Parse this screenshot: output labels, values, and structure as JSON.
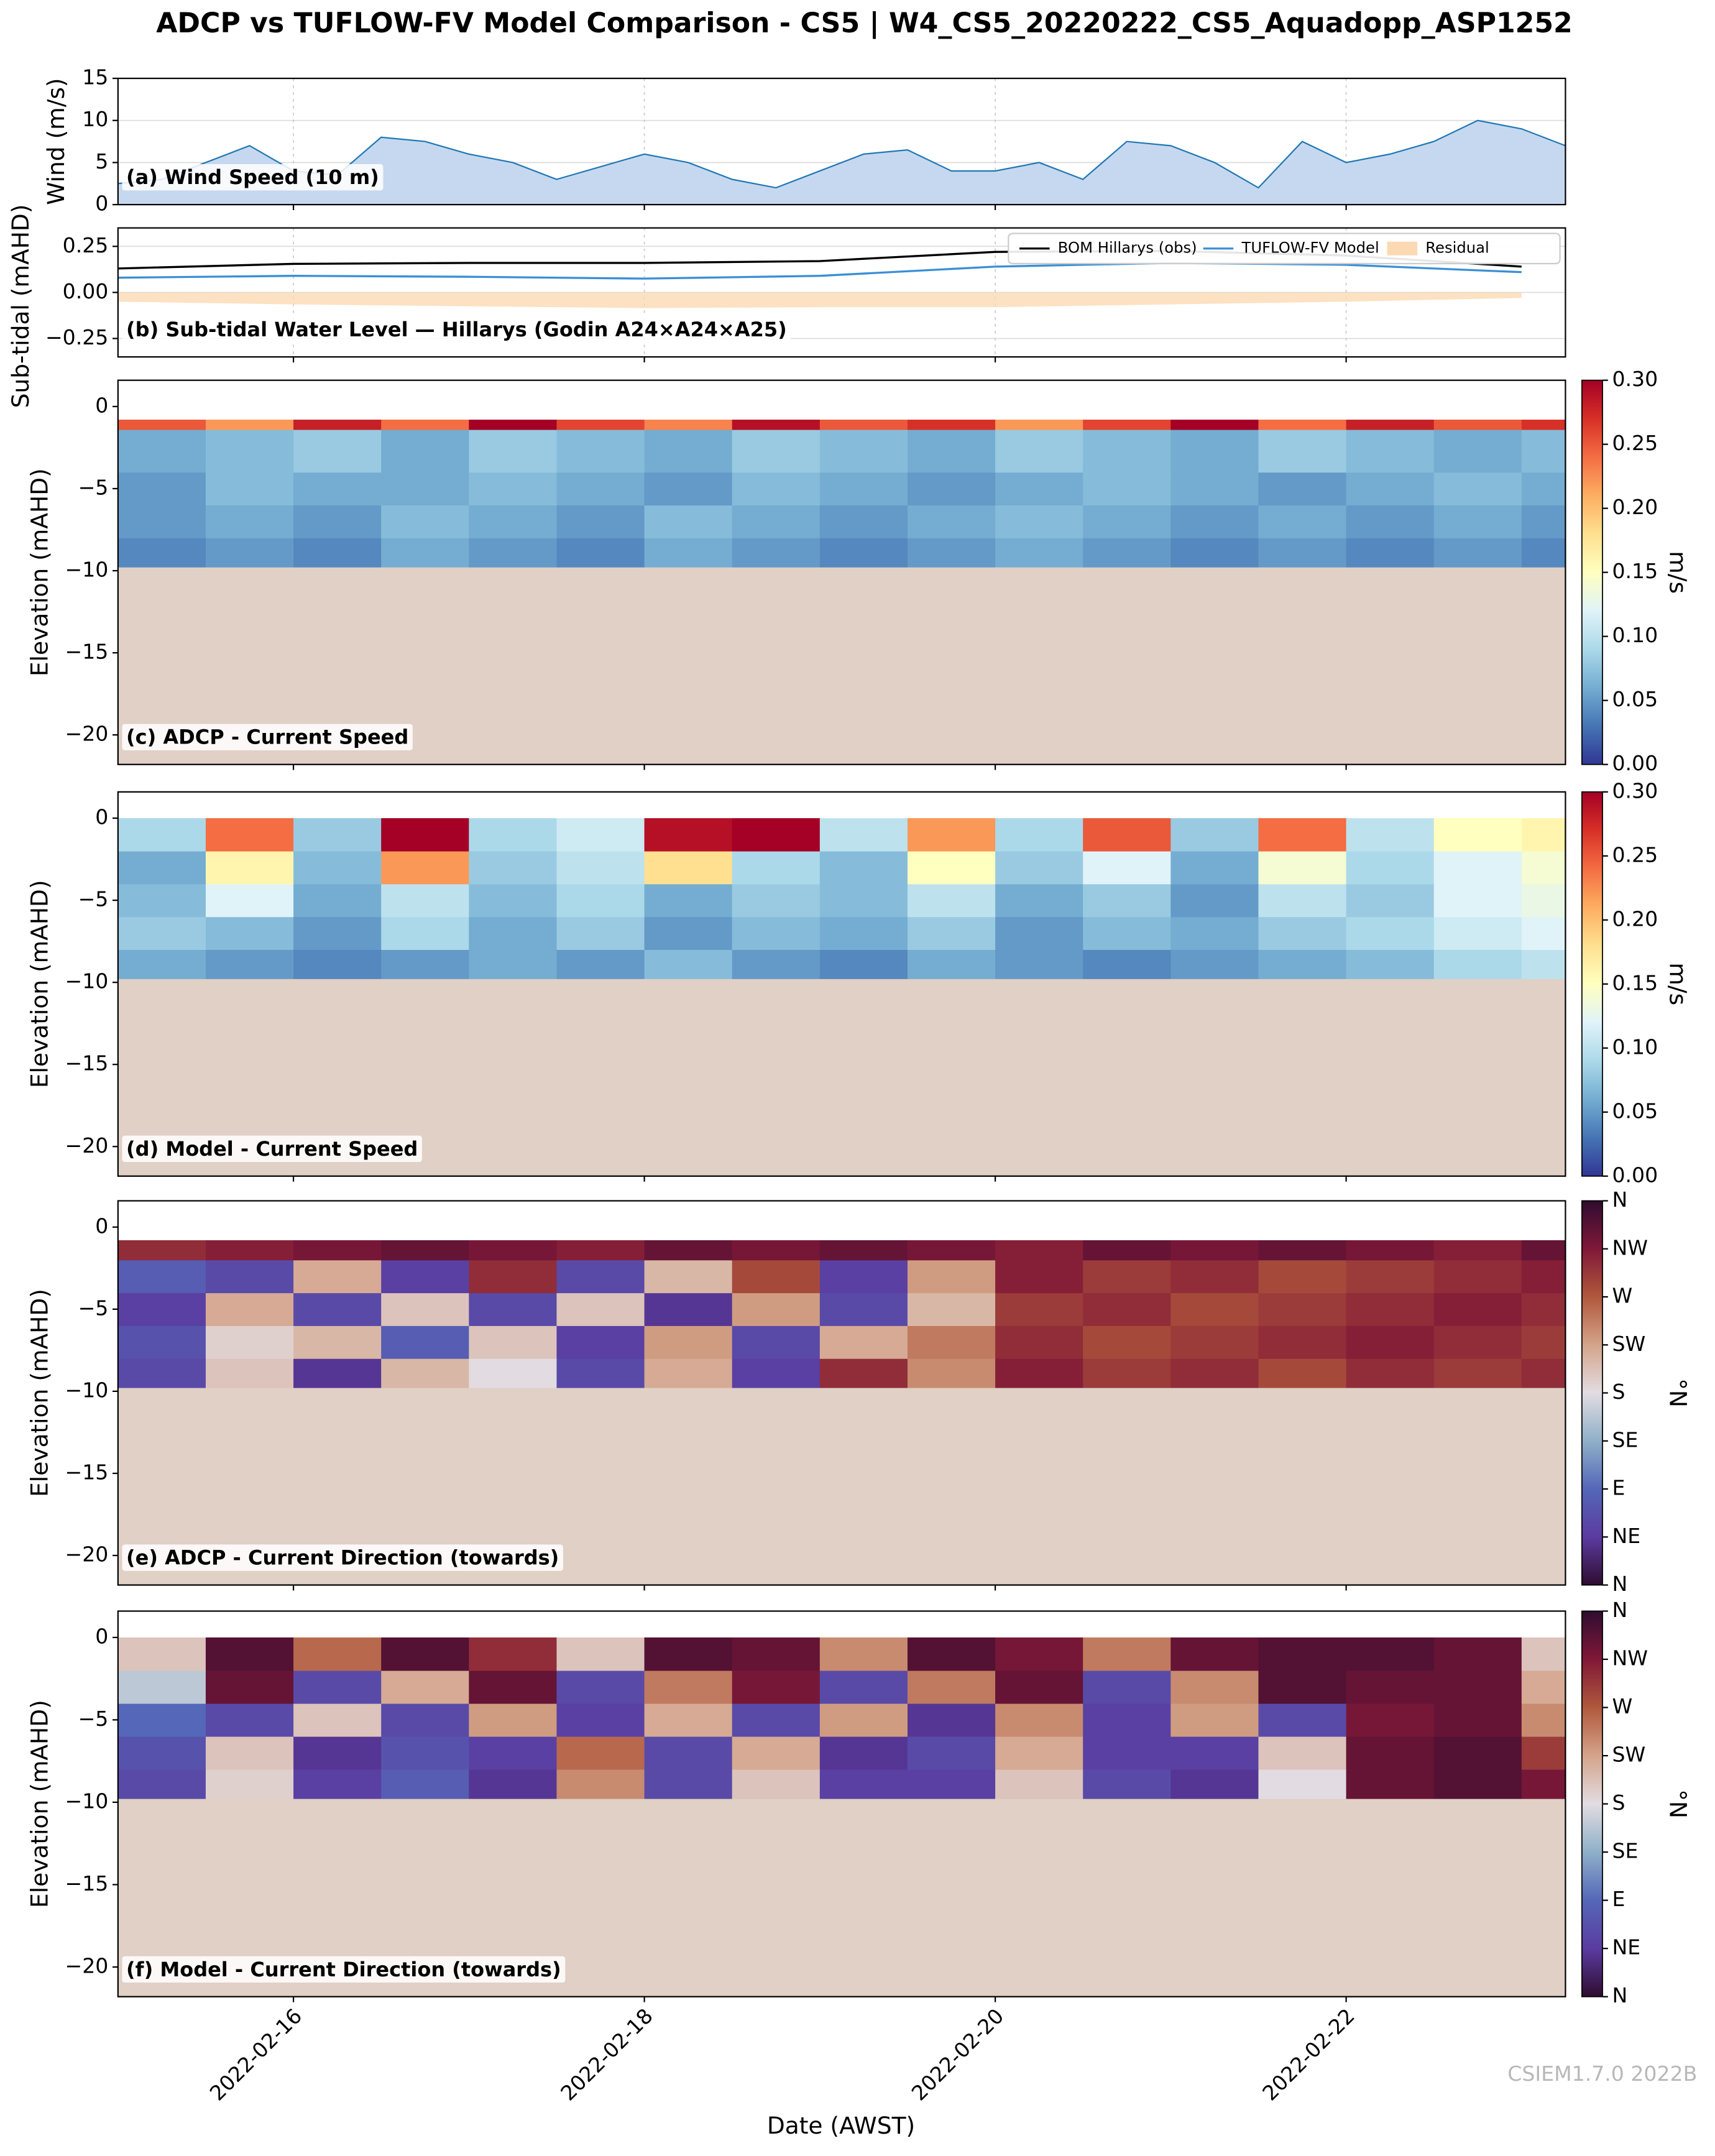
{
  "title": "ADCP vs TUFLOW-FV Model Comparison - CS5 | W4_CS5_20220222_CS5_Aquadopp_ASP1252",
  "x_label": "Date (AWST)",
  "watermark": "CSIEM1.7.0 2022B",
  "chart_data": [
    {
      "type": "area",
      "label": "(a) Wind Speed (10 m)",
      "ylabel": "Wind (m/s)",
      "color": "#1f77b4",
      "fill_color": "#c6d8ef",
      "grid": true,
      "xlim": [
        "2022-02-15T00:00",
        "2022-02-23T06:00"
      ],
      "ylim": [
        0,
        15
      ],
      "yticks": [
        0,
        5,
        10,
        15
      ],
      "x": [
        "2022-02-15T00:00",
        "2022-02-15T06:00",
        "2022-02-15T12:00",
        "2022-02-15T18:00",
        "2022-02-16T00:00",
        "2022-02-16T06:00",
        "2022-02-16T12:00",
        "2022-02-16T18:00",
        "2022-02-17T00:00",
        "2022-02-17T06:00",
        "2022-02-17T12:00",
        "2022-02-17T18:00",
        "2022-02-18T00:00",
        "2022-02-18T06:00",
        "2022-02-18T12:00",
        "2022-02-18T18:00",
        "2022-02-19T00:00",
        "2022-02-19T06:00",
        "2022-02-19T12:00",
        "2022-02-19T18:00",
        "2022-02-20T00:00",
        "2022-02-20T06:00",
        "2022-02-20T12:00",
        "2022-02-20T18:00",
        "2022-02-21T00:00",
        "2022-02-21T06:00",
        "2022-02-21T12:00",
        "2022-02-21T18:00",
        "2022-02-22T00:00",
        "2022-02-22T06:00",
        "2022-02-22T12:00",
        "2022-02-22T18:00",
        "2022-02-23T00:00",
        "2022-02-23T06:00"
      ],
      "values": [
        2.5,
        3,
        5,
        7,
        4,
        3.5,
        8,
        7.5,
        6,
        5,
        3,
        4.5,
        6,
        5,
        3,
        2,
        4,
        6,
        6.5,
        4,
        4,
        5,
        3,
        7.5,
        7,
        5,
        2,
        7.5,
        5,
        6,
        7.5,
        10,
        9,
        7
      ]
    },
    {
      "type": "line",
      "label": "(b) Sub-tidal Water Level — Hillarys (Godin A24×A24×A25)",
      "ylabel": "Sub-tidal (mAHD)",
      "grid": true,
      "legend": "upper right",
      "xlim": [
        "2022-02-15T00:00",
        "2022-02-23T06:00"
      ],
      "ylim": [
        -0.35,
        0.35
      ],
      "yticks": [
        {
          "value": -0.25,
          "label": "−0.25"
        },
        {
          "value": 0,
          "label": "0.00"
        },
        0.25
      ],
      "x": [
        "2022-02-15",
        "2022-02-16",
        "2022-02-17",
        "2022-02-18",
        "2022-02-19",
        "2022-02-20",
        "2022-02-21",
        "2022-02-22",
        "2022-02-23"
      ],
      "series": [
        {
          "name": "BOM Hillarys (obs)",
          "color": "#000000",
          "style": "line",
          "values": [
            0.13,
            0.155,
            0.16,
            0.16,
            0.17,
            0.22,
            0.225,
            0.2,
            0.14
          ]
        },
        {
          "name": "TUFLOW-FV Model",
          "color": "#3a8fd6",
          "style": "line",
          "values": [
            0.08,
            0.09,
            0.085,
            0.075,
            0.09,
            0.14,
            0.16,
            0.15,
            0.11
          ]
        },
        {
          "name": "Residual",
          "color": "#fbd9b3",
          "style": "fill",
          "values": [
            -0.05,
            -0.065,
            -0.075,
            -0.085,
            -0.08,
            -0.08,
            -0.065,
            -0.05,
            -0.03
          ]
        }
      ]
    },
    {
      "type": "heatmap",
      "label": "(c) ADCP - Current Speed",
      "ylabel": "Elevation (mAHD)",
      "clabel": "m/s",
      "bed_color": "#e0d0c5",
      "cmap": [
        "#313695",
        "#4575b4",
        "#74add1",
        "#abd9e9",
        "#e0f3f8",
        "#ffffbf",
        "#fee090",
        "#fdae61",
        "#f46d43",
        "#d73027",
        "#a50026"
      ],
      "xlim": [
        "2022-02-15T00:00",
        "2022-02-23T06:00"
      ],
      "ylim": [
        -21.8,
        1.6
      ],
      "yticks": [
        {
          "value": -20,
          "label": "−20"
        },
        {
          "value": -15,
          "label": "−15"
        },
        {
          "value": -10,
          "label": "−10"
        },
        {
          "value": -5,
          "label": "−5"
        },
        0
      ],
      "clim": [
        0,
        0.3
      ],
      "cticks": [
        {
          "value": 0,
          "label": "0.00"
        },
        0.05,
        {
          "value": 0.1,
          "label": "0.10"
        },
        0.15,
        {
          "value": 0.2,
          "label": "0.20"
        },
        0.25,
        {
          "value": 0.3,
          "label": "0.30"
        }
      ],
      "x": [
        "2022-02-15T00:00",
        "2022-02-15T12:00",
        "2022-02-16T00:00",
        "2022-02-16T12:00",
        "2022-02-17T00:00",
        "2022-02-17T12:00",
        "2022-02-18T00:00",
        "2022-02-18T12:00",
        "2022-02-19T00:00",
        "2022-02-19T12:00",
        "2022-02-20T00:00",
        "2022-02-20T12:00",
        "2022-02-21T00:00",
        "2022-02-21T12:00",
        "2022-02-22T00:00",
        "2022-02-22T12:00",
        "2022-02-23T00:00"
      ],
      "y_edges": [
        -9.8,
        -8,
        -6,
        -4,
        -1.4,
        -0.8
      ],
      "z": [
        [
          0.04,
          0.05,
          0.04,
          0.06,
          0.05,
          0.04,
          0.06,
          0.05,
          0.04,
          0.05,
          0.06,
          0.05,
          0.04,
          0.05,
          0.04,
          0.05,
          0.04
        ],
        [
          0.05,
          0.06,
          0.05,
          0.07,
          0.06,
          0.05,
          0.07,
          0.06,
          0.05,
          0.06,
          0.07,
          0.06,
          0.05,
          0.06,
          0.05,
          0.06,
          0.05
        ],
        [
          0.05,
          0.07,
          0.06,
          0.06,
          0.07,
          0.06,
          0.05,
          0.07,
          0.06,
          0.05,
          0.06,
          0.07,
          0.06,
          0.05,
          0.06,
          0.07,
          0.06
        ],
        [
          0.06,
          0.07,
          0.08,
          0.06,
          0.08,
          0.07,
          0.06,
          0.08,
          0.07,
          0.06,
          0.08,
          0.07,
          0.06,
          0.08,
          0.07,
          0.06,
          0.07
        ],
        [
          0.25,
          0.22,
          0.28,
          0.24,
          0.3,
          0.26,
          0.23,
          0.29,
          0.25,
          0.27,
          0.22,
          0.26,
          0.3,
          0.24,
          0.28,
          0.25,
          0.27
        ]
      ]
    },
    {
      "type": "heatmap",
      "label": "(d) Model - Current Speed",
      "ylabel": "Elevation (mAHD)",
      "clabel": "m/s",
      "bed_color": "#e0d0c5",
      "cmap": [
        "#313695",
        "#4575b4",
        "#74add1",
        "#abd9e9",
        "#e0f3f8",
        "#ffffbf",
        "#fee090",
        "#fdae61",
        "#f46d43",
        "#d73027",
        "#a50026"
      ],
      "xlim": [
        "2022-02-15T00:00",
        "2022-02-23T06:00"
      ],
      "ylim": [
        -21.8,
        1.6
      ],
      "yticks": [
        {
          "value": -20,
          "label": "−20"
        },
        {
          "value": -15,
          "label": "−15"
        },
        {
          "value": -10,
          "label": "−10"
        },
        {
          "value": -5,
          "label": "−5"
        },
        0
      ],
      "clim": [
        0,
        0.3
      ],
      "cticks": [
        {
          "value": 0,
          "label": "0.00"
        },
        0.05,
        {
          "value": 0.1,
          "label": "0.10"
        },
        0.15,
        {
          "value": 0.2,
          "label": "0.20"
        },
        0.25,
        {
          "value": 0.3,
          "label": "0.30"
        }
      ],
      "x": [
        "2022-02-15T00:00",
        "2022-02-15T12:00",
        "2022-02-16T00:00",
        "2022-02-16T12:00",
        "2022-02-17T00:00",
        "2022-02-17T12:00",
        "2022-02-18T00:00",
        "2022-02-18T12:00",
        "2022-02-19T00:00",
        "2022-02-19T12:00",
        "2022-02-20T00:00",
        "2022-02-20T12:00",
        "2022-02-21T00:00",
        "2022-02-21T12:00",
        "2022-02-22T00:00",
        "2022-02-22T12:00",
        "2022-02-23T00:00"
      ],
      "y_edges": [
        -9.8,
        -8,
        -6,
        -4,
        -2,
        0
      ],
      "z": [
        [
          0.06,
          0.05,
          0.04,
          0.05,
          0.06,
          0.05,
          0.07,
          0.05,
          0.04,
          0.06,
          0.05,
          0.04,
          0.05,
          0.06,
          0.07,
          0.09,
          0.1
        ],
        [
          0.08,
          0.07,
          0.05,
          0.09,
          0.06,
          0.08,
          0.05,
          0.07,
          0.06,
          0.08,
          0.05,
          0.07,
          0.06,
          0.08,
          0.09,
          0.11,
          0.12
        ],
        [
          0.07,
          0.12,
          0.06,
          0.1,
          0.07,
          0.09,
          0.06,
          0.08,
          0.07,
          0.1,
          0.06,
          0.08,
          0.05,
          0.1,
          0.08,
          0.12,
          0.13
        ],
        [
          0.06,
          0.16,
          0.07,
          0.22,
          0.08,
          0.1,
          0.18,
          0.09,
          0.07,
          0.15,
          0.08,
          0.12,
          0.06,
          0.14,
          0.09,
          0.12,
          0.14
        ],
        [
          0.09,
          0.24,
          0.08,
          0.3,
          0.09,
          0.11,
          0.29,
          0.3,
          0.1,
          0.22,
          0.09,
          0.25,
          0.08,
          0.24,
          0.1,
          0.15,
          0.16
        ]
      ]
    },
    {
      "type": "heatmap",
      "label": "(e) ADCP - Current Direction (towards)",
      "ylabel": "Elevation (mAHD)",
      "clabel": "°N",
      "bed_color": "#e0d0c5",
      "cmap": [
        "#2f0c30",
        "#5b3ba0",
        "#5467b8",
        "#8fb0c8",
        "#e2dce2",
        "#d4a48a",
        "#b0583c",
        "#801838",
        "#2f0c30"
      ],
      "xlim": [
        "2022-02-15T00:00",
        "2022-02-23T06:00"
      ],
      "ylim": [
        -21.8,
        1.6
      ],
      "yticks": [
        {
          "value": -20,
          "label": "−20"
        },
        {
          "value": -15,
          "label": "−15"
        },
        {
          "value": -10,
          "label": "−10"
        },
        {
          "value": -5,
          "label": "−5"
        },
        0
      ],
      "clim": [
        0,
        360
      ],
      "cticks": [
        {
          "value": 0,
          "label": "N"
        },
        {
          "value": 45,
          "label": "NE"
        },
        {
          "value": 90,
          "label": "E"
        },
        {
          "value": 135,
          "label": "SE"
        },
        {
          "value": 180,
          "label": "S"
        },
        {
          "value": 225,
          "label": "SW"
        },
        {
          "value": 270,
          "label": "W"
        },
        {
          "value": 315,
          "label": "NW"
        },
        {
          "value": 360,
          "label": "N"
        }
      ],
      "x": [
        "2022-02-15T00:00",
        "2022-02-15T12:00",
        "2022-02-16T00:00",
        "2022-02-16T12:00",
        "2022-02-17T00:00",
        "2022-02-17T12:00",
        "2022-02-18T00:00",
        "2022-02-18T12:00",
        "2022-02-19T00:00",
        "2022-02-19T12:00",
        "2022-02-20T00:00",
        "2022-02-20T12:00",
        "2022-02-21T00:00",
        "2022-02-21T12:00",
        "2022-02-22T00:00",
        "2022-02-22T12:00",
        "2022-02-23T00:00"
      ],
      "y_edges": [
        -9.8,
        -8,
        -6,
        -4,
        -2,
        -0.8
      ],
      "z": [
        [
          60,
          200,
          40,
          210,
          180,
          60,
          220,
          50,
          300,
          240,
          310,
          290,
          300,
          280,
          300,
          290,
          300
        ],
        [
          70,
          190,
          210,
          80,
          200,
          50,
          230,
          60,
          220,
          250,
          300,
          280,
          290,
          300,
          310,
          300,
          290
        ],
        [
          50,
          220,
          60,
          200,
          60,
          200,
          40,
          230,
          60,
          210,
          290,
          300,
          280,
          290,
          300,
          310,
          300
        ],
        [
          80,
          60,
          220,
          50,
          300,
          60,
          210,
          280,
          50,
          230,
          310,
          290,
          300,
          280,
          290,
          300,
          310
        ],
        [
          300,
          310,
          320,
          330,
          320,
          310,
          330,
          320,
          330,
          320,
          310,
          330,
          320,
          330,
          320,
          310,
          330
        ]
      ]
    },
    {
      "type": "heatmap",
      "label": "(f) Model - Current Direction (towards)",
      "ylabel": "Elevation (mAHD)",
      "clabel": "°N",
      "bed_color": "#e0d0c5",
      "cmap": [
        "#2f0c30",
        "#5b3ba0",
        "#5467b8",
        "#8fb0c8",
        "#e2dce2",
        "#d4a48a",
        "#b0583c",
        "#801838",
        "#2f0c30"
      ],
      "xlim": [
        "2022-02-15T00:00",
        "2022-02-23T06:00"
      ],
      "ylim": [
        -21.8,
        1.6
      ],
      "yticks": [
        {
          "value": -20,
          "label": "−20"
        },
        {
          "value": -15,
          "label": "−15"
        },
        {
          "value": -10,
          "label": "−10"
        },
        {
          "value": -5,
          "label": "−5"
        },
        0
      ],
      "xticks": [
        "2022-02-16",
        "2022-02-18",
        "2022-02-20",
        "2022-02-22"
      ],
      "clim": [
        0,
        360
      ],
      "cticks": [
        {
          "value": 0,
          "label": "N"
        },
        {
          "value": 45,
          "label": "NE"
        },
        {
          "value": 90,
          "label": "E"
        },
        {
          "value": 135,
          "label": "SE"
        },
        {
          "value": 180,
          "label": "S"
        },
        {
          "value": 225,
          "label": "SW"
        },
        {
          "value": 270,
          "label": "W"
        },
        {
          "value": 315,
          "label": "NW"
        },
        {
          "value": 360,
          "label": "N"
        }
      ],
      "x": [
        "2022-02-15T00:00",
        "2022-02-15T12:00",
        "2022-02-16T00:00",
        "2022-02-16T12:00",
        "2022-02-17T00:00",
        "2022-02-17T12:00",
        "2022-02-18T00:00",
        "2022-02-18T12:00",
        "2022-02-19T00:00",
        "2022-02-19T12:00",
        "2022-02-20T00:00",
        "2022-02-20T12:00",
        "2022-02-21T00:00",
        "2022-02-21T12:00",
        "2022-02-22T00:00",
        "2022-02-22T12:00",
        "2022-02-23T00:00"
      ],
      "y_edges": [
        -9.8,
        -8,
        -6,
        -4,
        -2,
        0
      ],
      "z": [
        [
          60,
          190,
          50,
          80,
          40,
          240,
          60,
          200,
          50,
          50,
          200,
          60,
          40,
          180,
          330,
          340,
          320
        ],
        [
          70,
          200,
          40,
          70,
          50,
          260,
          60,
          220,
          40,
          60,
          220,
          50,
          50,
          200,
          330,
          340,
          290
        ],
        [
          90,
          60,
          200,
          60,
          230,
          50,
          220,
          60,
          230,
          40,
          240,
          50,
          230,
          60,
          320,
          330,
          240
        ],
        [
          160,
          330,
          60,
          220,
          330,
          60,
          250,
          320,
          60,
          250,
          330,
          60,
          240,
          340,
          330,
          330,
          220
        ],
        [
          200,
          340,
          260,
          340,
          300,
          200,
          340,
          330,
          240,
          340,
          320,
          250,
          330,
          340,
          340,
          330,
          200
        ]
      ]
    }
  ]
}
